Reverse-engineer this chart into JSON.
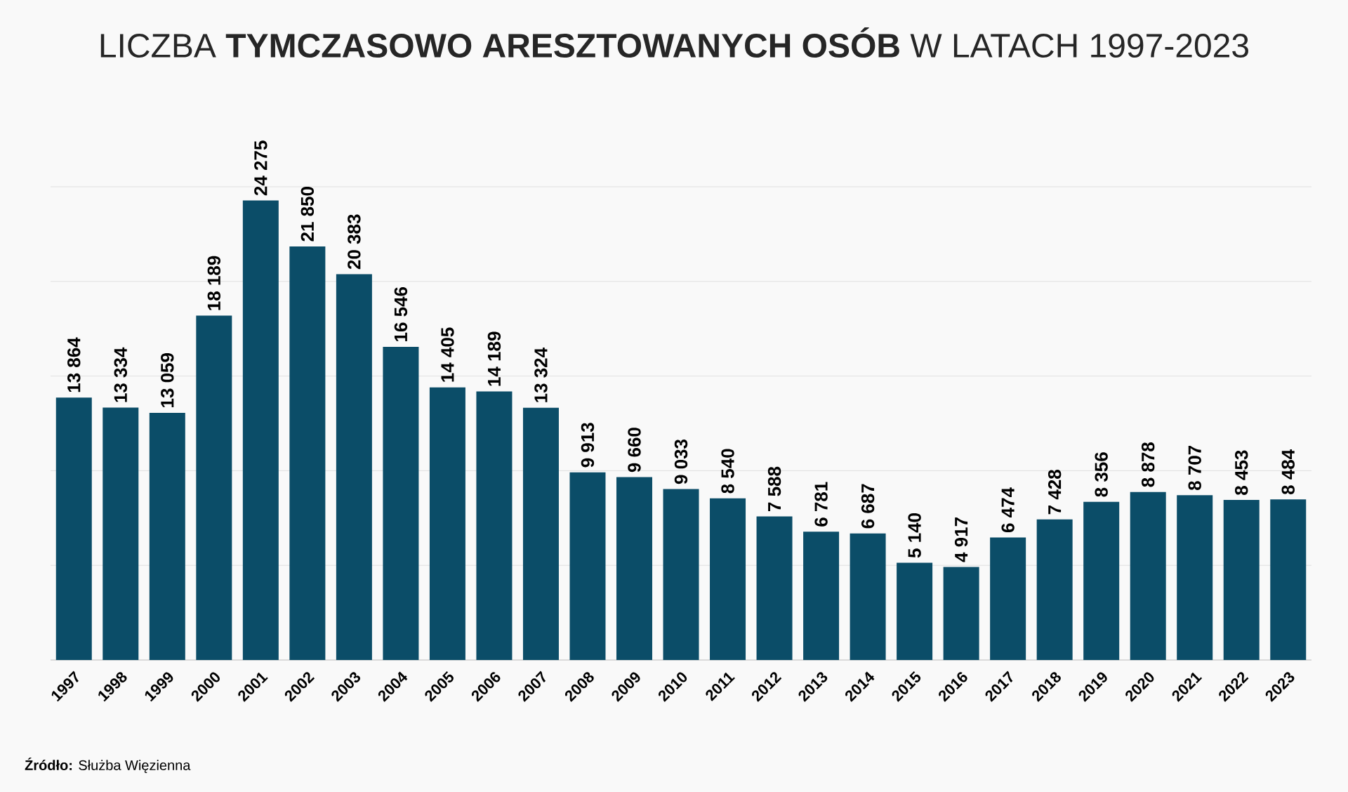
{
  "chart_data": {
    "type": "bar",
    "title": "LICZBA **TYMCZASOWO ARESZTOWANYCH OSÓB** W LATACH 1997-2023",
    "categories": [
      "1997",
      "1998",
      "1999",
      "2000",
      "2001",
      "2002",
      "2003",
      "2004",
      "2005",
      "2006",
      "2007",
      "2008",
      "2009",
      "2010",
      "2011",
      "2012",
      "2013",
      "2014",
      "2015",
      "2016",
      "2017",
      "2018",
      "2019",
      "2020",
      "2021",
      "2022",
      "2023"
    ],
    "values": [
      13864,
      13334,
      13059,
      18189,
      24275,
      21850,
      20383,
      16546,
      14405,
      14189,
      13324,
      9913,
      9660,
      9033,
      8540,
      7588,
      6781,
      6687,
      5140,
      4917,
      6474,
      7428,
      8356,
      8878,
      8707,
      8453,
      8484
    ],
    "color": "#0b4d68",
    "ylim": [
      0,
      25000
    ],
    "grid": "y",
    "tick_labels": "x",
    "data_labels": true,
    "annotations": [
      "**Źródło:** Służba Więzienna"
    ]
  }
}
